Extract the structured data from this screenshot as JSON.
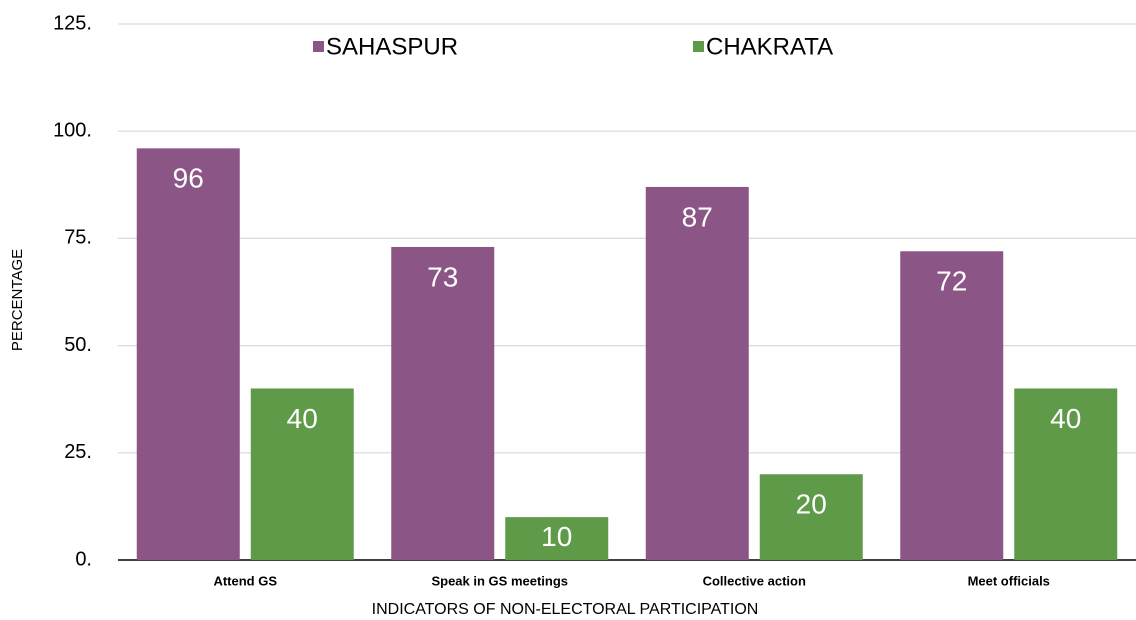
{
  "chart_data": {
    "type": "bar",
    "x_label": "INDICATORS OF NON-ELECTORAL PARTICIPATION",
    "y_label": "PERCENTAGE",
    "categories": [
      "Attend GS",
      "Speak in GS meetings",
      "Collective action",
      "Meet officials"
    ],
    "series": [
      {
        "name": "SAHASPUR",
        "color": "#8b5586",
        "values": [
          96,
          73,
          87,
          72
        ]
      },
      {
        "name": "CHAKRATA",
        "color": "#5e9a48",
        "values": [
          40,
          10,
          20,
          40
        ]
      }
    ],
    "ylim": [
      0,
      125
    ],
    "yticks": [
      {
        "value": 0,
        "label": "0."
      },
      {
        "value": 25,
        "label": "25."
      },
      {
        "value": 50,
        "label": "50."
      },
      {
        "value": 75,
        "label": "75."
      },
      {
        "value": 100,
        "label": "100."
      },
      {
        "value": 125,
        "label": "125."
      }
    ],
    "grid": true,
    "legend": "top",
    "data_labels": true
  }
}
